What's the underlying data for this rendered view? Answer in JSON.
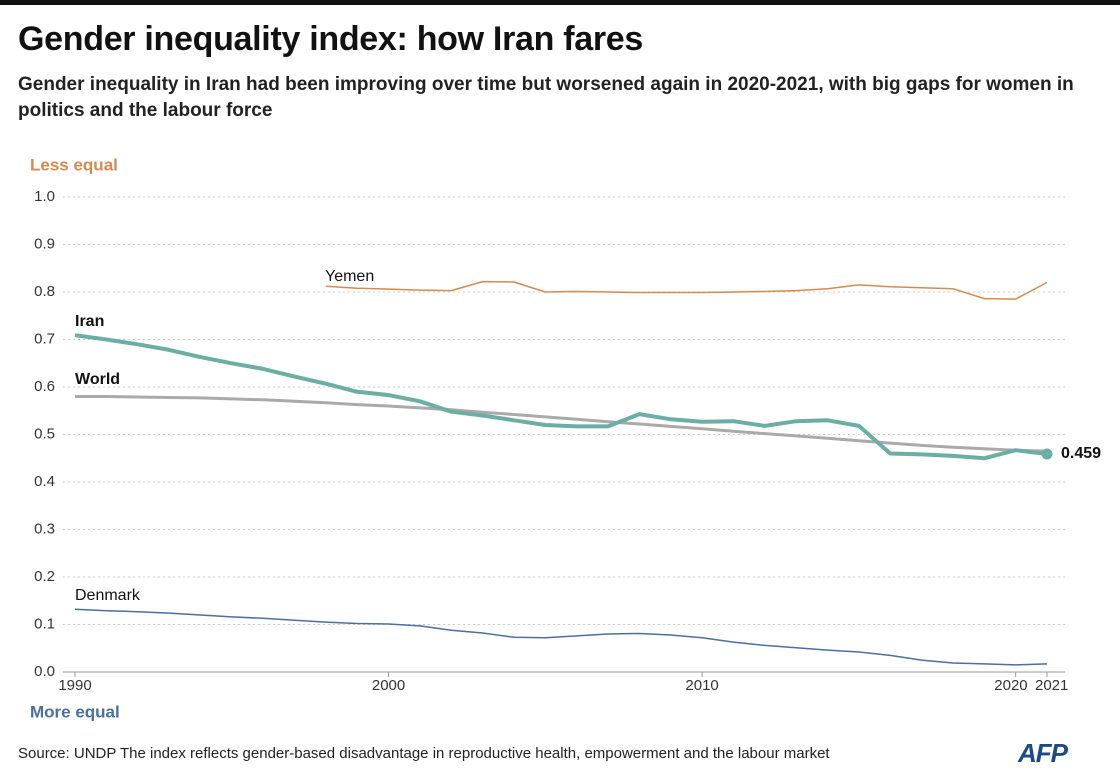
{
  "chart_data": {
    "type": "line",
    "title": "Gender inequality index: how Iran fares",
    "subtitle": "Gender inequality in Iran had been improving over time but worsened again in 2020-2021, with big gaps for women in politics and the labour force",
    "top_annotation": "Less equal",
    "bottom_annotation": "More equal",
    "source": "Source: UNDP   The index reflects gender-based disadvantage in reproductive health, empowerment and the labour market",
    "logo": "AFP",
    "x": [
      1990,
      1991,
      1992,
      1993,
      1994,
      1995,
      1996,
      1997,
      1998,
      1999,
      2000,
      2001,
      2002,
      2003,
      2004,
      2005,
      2006,
      2007,
      2008,
      2009,
      2010,
      2011,
      2012,
      2013,
      2014,
      2015,
      2016,
      2017,
      2018,
      2019,
      2020,
      2021
    ],
    "xlim": [
      1990,
      2021
    ],
    "xticks": [
      1990,
      2000,
      2010,
      2020,
      2021
    ],
    "ylim": [
      0,
      1
    ],
    "yticks": [
      {
        "value": 0,
        "label": "0.0"
      },
      0.1,
      0.2,
      0.3,
      0.4,
      0.5,
      0.6,
      0.7,
      0.8,
      0.9,
      {
        "value": 1,
        "label": "1.0"
      }
    ],
    "grid": true,
    "series": [
      {
        "name": "Iran",
        "color": "#6aaea4",
        "values": [
          0.709,
          0.7,
          0.69,
          0.678,
          0.663,
          0.65,
          0.638,
          0.622,
          0.607,
          0.59,
          0.583,
          0.57,
          0.548,
          0.54,
          0.53,
          0.52,
          0.517,
          0.517,
          0.543,
          0.532,
          0.527,
          0.528,
          0.518,
          0.528,
          0.53,
          0.518,
          0.46,
          0.458,
          0.455,
          0.45,
          0.467,
          0.459
        ]
      },
      {
        "name": "World",
        "color": "#aaaaaa",
        "values": [
          0.58,
          0.58,
          0.579,
          0.578,
          0.577,
          0.575,
          0.573,
          0.57,
          0.567,
          0.563,
          0.56,
          0.556,
          0.552,
          0.547,
          0.542,
          0.537,
          0.532,
          0.527,
          0.522,
          0.517,
          0.512,
          0.507,
          0.502,
          0.497,
          0.492,
          0.487,
          0.482,
          0.477,
          0.473,
          0.47,
          0.467,
          0.465
        ]
      },
      {
        "name": "Yemen",
        "color": "#d9894f",
        "values": [
          null,
          null,
          null,
          null,
          null,
          null,
          null,
          null,
          0.812,
          0.808,
          0.806,
          0.804,
          0.803,
          0.822,
          0.821,
          0.8,
          0.801,
          0.8,
          0.799,
          0.799,
          0.799,
          0.8,
          0.801,
          0.803,
          0.807,
          0.815,
          0.811,
          0.809,
          0.807,
          0.786,
          0.785,
          0.82
        ]
      },
      {
        "name": "Denmark",
        "color": "#4a6fa0",
        "values": [
          0.132,
          0.129,
          0.127,
          0.124,
          0.12,
          0.116,
          0.113,
          0.109,
          0.105,
          0.102,
          0.101,
          0.097,
          0.088,
          0.082,
          0.073,
          0.072,
          0.076,
          0.08,
          0.081,
          0.078,
          0.072,
          0.063,
          0.056,
          0.051,
          0.046,
          0.042,
          0.035,
          0.025,
          0.019,
          0.017,
          0.015,
          0.017
        ]
      }
    ]
  }
}
